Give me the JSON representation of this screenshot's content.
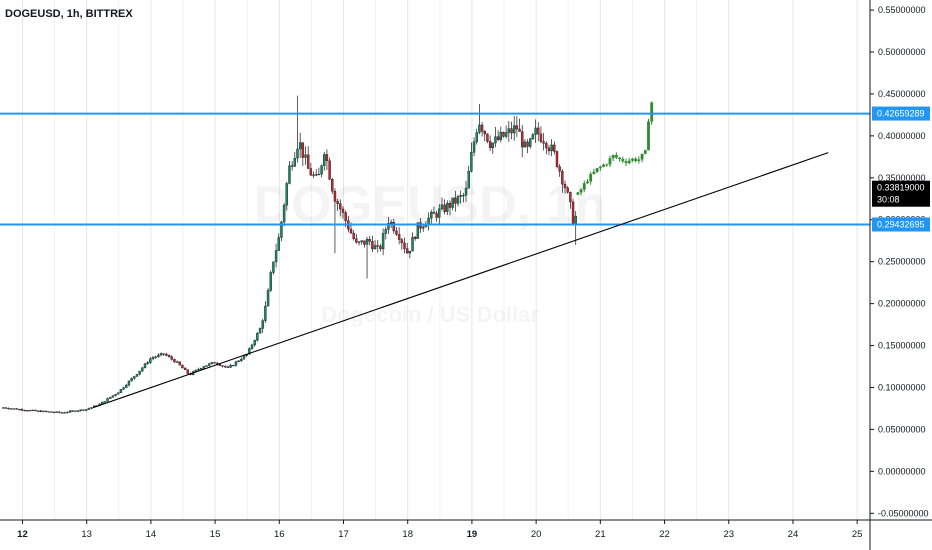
{
  "header": {
    "symbol_text": "DOGEUSD, 1h, BITTREX"
  },
  "watermark": {
    "symbol": "DOGEUSD, 1h",
    "subtitle": "Dogecoin / US Dollar"
  },
  "chart_data": {
    "type": "candlestick",
    "symbol": "DOGEUSD",
    "interval": "1h",
    "exchange": "BITTREX",
    "x_ticks": [
      "12",
      "13",
      "14",
      "15",
      "16",
      "17",
      "18",
      "19",
      "20",
      "21",
      "22",
      "23",
      "24",
      "25"
    ],
    "x_tick_days": [
      12,
      13,
      14,
      15,
      16,
      17,
      18,
      19,
      20,
      21,
      22,
      23,
      24,
      25
    ],
    "xlim": [
      11.65,
      25.2
    ],
    "y_ticks": [
      "0.55000000",
      "0.50000000",
      "0.45000000",
      "0.40000000",
      "0.35000000",
      "0.30000000",
      "0.25000000",
      "0.20000000",
      "0.15000000",
      "0.10000000",
      "0.05000000",
      "0.00000000",
      "-0.05000000"
    ],
    "y_tick_values": [
      0.55,
      0.5,
      0.45,
      0.4,
      0.35,
      0.3,
      0.25,
      0.2,
      0.15,
      0.1,
      0.05,
      0.0,
      -0.05
    ],
    "ylim": [
      -0.058,
      0.562
    ],
    "horizontal_levels": [
      {
        "value": 0.42659289,
        "label": "0.42659289",
        "color": "#2196f3"
      },
      {
        "value": 0.29432695,
        "label": "0.29432695",
        "color": "#2196f3"
      }
    ],
    "trendline": {
      "x": [
        13.1,
        24.55
      ],
      "y": [
        0.076,
        0.38
      ],
      "color": "#000000"
    },
    "last_price": {
      "label": "0.33819000",
      "countdown": "30:08",
      "value": 0.33819
    },
    "candles": {
      "actual": [
        [
          11.7,
          0.076
        ],
        [
          12.2,
          0.072
        ],
        [
          12.6,
          0.07
        ],
        [
          13.0,
          0.074
        ],
        [
          13.2,
          0.08
        ],
        [
          13.5,
          0.095
        ],
        [
          13.8,
          0.118
        ],
        [
          14.0,
          0.135
        ],
        [
          14.2,
          0.14
        ],
        [
          14.4,
          0.13
        ],
        [
          14.6,
          0.115
        ],
        [
          14.8,
          0.125
        ],
        [
          15.0,
          0.13
        ],
        [
          15.2,
          0.123
        ],
        [
          15.5,
          0.14
        ],
        [
          15.7,
          0.17
        ],
        [
          15.8,
          0.2
        ],
        [
          15.9,
          0.25
        ],
        [
          16.0,
          0.28
        ],
        [
          16.15,
          0.36
        ],
        [
          16.3,
          0.395
        ],
        [
          16.45,
          0.36
        ],
        [
          16.6,
          0.345
        ],
        [
          16.7,
          0.385
        ],
        [
          16.85,
          0.33
        ],
        [
          17.0,
          0.305
        ],
        [
          17.2,
          0.27
        ],
        [
          17.4,
          0.275
        ],
        [
          17.55,
          0.262
        ],
        [
          17.7,
          0.3
        ],
        [
          17.85,
          0.285
        ],
        [
          18.0,
          0.26
        ],
        [
          18.15,
          0.29
        ],
        [
          18.3,
          0.3
        ],
        [
          18.5,
          0.31
        ],
        [
          18.7,
          0.32
        ],
        [
          18.9,
          0.33
        ],
        [
          19.0,
          0.38
        ],
        [
          19.1,
          0.42
        ],
        [
          19.3,
          0.39
        ],
        [
          19.5,
          0.4
        ],
        [
          19.7,
          0.41
        ],
        [
          19.85,
          0.38
        ],
        [
          20.0,
          0.405
        ],
        [
          20.15,
          0.395
        ],
        [
          20.3,
          0.375
        ],
        [
          20.45,
          0.34
        ],
        [
          20.55,
          0.31
        ],
        [
          20.6,
          0.29
        ],
        [
          20.65,
          0.33
        ]
      ],
      "projected": [
        [
          20.65,
          0.33
        ],
        [
          20.8,
          0.348
        ],
        [
          20.95,
          0.36
        ],
        [
          21.1,
          0.368
        ],
        [
          21.2,
          0.376
        ],
        [
          21.3,
          0.372
        ],
        [
          21.4,
          0.37
        ],
        [
          21.5,
          0.372
        ],
        [
          21.6,
          0.372
        ],
        [
          21.7,
          0.38
        ],
        [
          21.75,
          0.42
        ],
        [
          21.8,
          0.44
        ],
        [
          21.85,
          0.427
        ]
      ]
    },
    "colors": {
      "bullish": "#1a8a5a",
      "bearish": "#c62828",
      "projection": "#2e8b2e",
      "level_line": "#2196f3",
      "trendline": "#000000",
      "axis_line": "#131722",
      "vertical_grid": "#e6e6ea"
    }
  }
}
